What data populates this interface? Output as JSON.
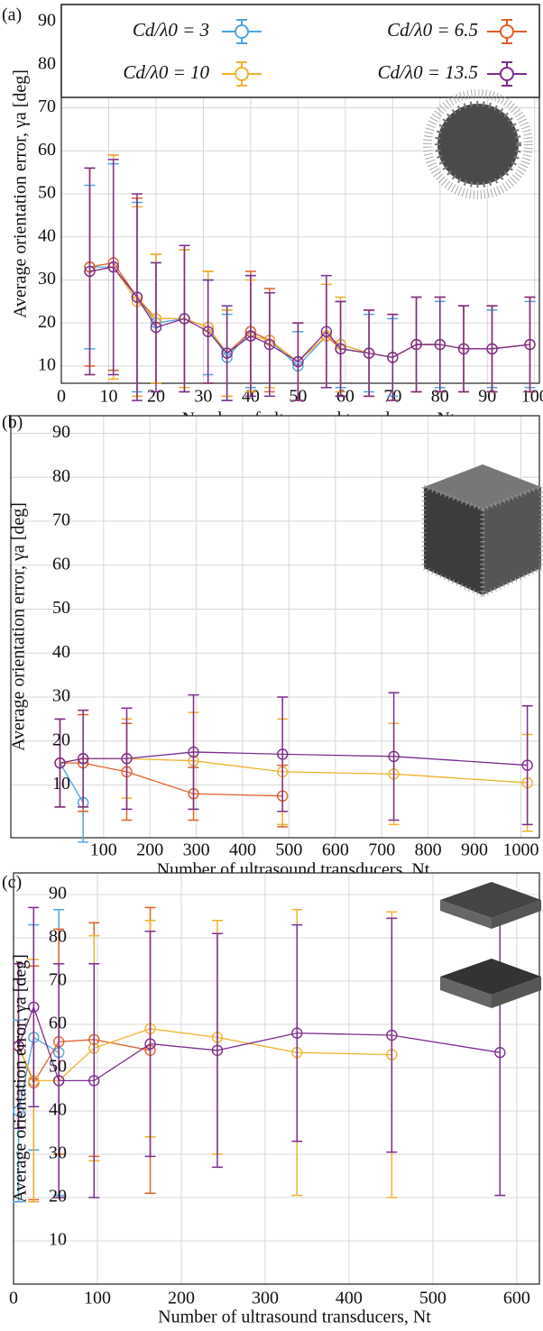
{
  "chart_data": [
    {
      "type": "errorbar-line",
      "panel_label": "(a)",
      "x_label": "Number of ultrasound transducers, Nt",
      "y_label": "Average orientation error, γa [deg]",
      "xlim": [
        0,
        101
      ],
      "xticks": [
        0,
        10,
        20,
        30,
        40,
        50,
        60,
        70,
        80,
        90,
        100
      ],
      "ylim": [
        6,
        94
      ],
      "yticks": [
        10,
        20,
        30,
        40,
        50,
        60,
        70,
        80,
        90
      ],
      "grid": true,
      "legend": "top",
      "series": [
        {
          "name": "Cd/λ0 = 3",
          "color": "#4ea5dc",
          "x": [
            6,
            11,
            16,
            20,
            26,
            31,
            35,
            40,
            44,
            50,
            56,
            59,
            65,
            70,
            75,
            80,
            85,
            91,
            99
          ],
          "values": [
            33,
            33,
            26,
            20,
            21,
            19,
            12,
            18,
            16,
            10,
            17,
            15,
            13,
            12,
            15,
            15,
            14,
            14,
            15
          ],
          "errors": [
            19,
            24,
            22,
            14,
            16,
            11,
            10,
            13,
            11,
            8,
            12,
            10,
            9,
            9,
            11,
            10,
            10,
            9,
            10
          ]
        },
        {
          "name": "Cd/λ0 = 6.5",
          "color": "#e0602a",
          "x": [
            6,
            11,
            16,
            20,
            26,
            31,
            35,
            40,
            44,
            50,
            56,
            59,
            65,
            70,
            75,
            80,
            85,
            91,
            99
          ],
          "values": [
            33,
            34,
            26,
            21,
            21,
            19,
            13,
            18,
            16,
            11,
            17,
            14,
            13,
            12,
            15,
            15,
            14,
            14,
            15
          ],
          "errors": [
            23,
            25,
            23,
            15,
            17,
            13,
            10,
            14,
            12,
            9,
            12,
            11,
            10,
            10,
            11,
            11,
            10,
            10,
            11
          ]
        },
        {
          "name": "Cd/λ0 = 10",
          "color": "#efb22f",
          "x": [
            6,
            11,
            16,
            20,
            26,
            31,
            35,
            40,
            44,
            50,
            56,
            59,
            65,
            70,
            75,
            80,
            85,
            91,
            99
          ],
          "values": [
            32,
            33,
            25,
            21,
            21,
            19,
            13,
            17,
            16,
            11,
            17,
            15,
            13,
            12,
            15,
            15,
            14,
            14,
            15
          ],
          "errors": [
            24,
            26,
            22,
            15,
            16,
            13,
            10,
            13,
            11,
            9,
            12,
            11,
            10,
            10,
            11,
            11,
            10,
            10,
            11
          ]
        },
        {
          "name": "Cd/λ0 = 13.5",
          "color": "#7b2d8e",
          "x": [
            6,
            11,
            16,
            20,
            26,
            31,
            35,
            40,
            44,
            50,
            56,
            59,
            65,
            70,
            75,
            80,
            85,
            91,
            99
          ],
          "values": [
            32,
            33,
            26,
            19,
            21,
            18,
            13,
            17,
            15,
            11,
            18,
            14,
            13,
            12,
            15,
            15,
            14,
            14,
            15
          ],
          "errors": [
            24,
            25,
            24,
            15,
            17,
            12,
            11,
            14,
            12,
            9,
            13,
            11,
            10,
            10,
            11,
            11,
            10,
            10,
            11
          ]
        }
      ]
    },
    {
      "type": "errorbar-line",
      "panel_label": "(b)",
      "x_label": "Number of ultrasound transducers, Nt",
      "y_label": "Average orientation error, γa [deg]",
      "xlim": [
        -100,
        1040
      ],
      "xticks": [
        100,
        200,
        300,
        400,
        500,
        600,
        700,
        800,
        900,
        1000
      ],
      "ylim": [
        -2,
        94
      ],
      "yticks": [
        10,
        20,
        30,
        40,
        50,
        60,
        70,
        80,
        90
      ],
      "grid": true,
      "series": [
        {
          "color": "#4ea5dc",
          "x": [
            6,
            56
          ],
          "values": [
            15,
            6
          ],
          "errors": [
            10,
            9
          ]
        },
        {
          "color": "#e0602a",
          "x": [
            6,
            56,
            150,
            294,
            486
          ],
          "values": [
            15,
            15,
            13,
            8,
            7.5
          ],
          "errors": [
            10,
            11,
            11,
            6,
            7
          ]
        },
        {
          "color": "#efb22f",
          "x": [
            6,
            56,
            150,
            294,
            486,
            726,
            1014
          ],
          "values": [
            15,
            16,
            16,
            15.5,
            13,
            12.5,
            10.5
          ],
          "errors": [
            10,
            11,
            9,
            11,
            12,
            11.5,
            11
          ]
        },
        {
          "color": "#7b2d8e",
          "x": [
            6,
            56,
            150,
            294,
            486,
            726,
            1014
          ],
          "values": [
            15,
            16,
            16,
            17.5,
            17,
            16.5,
            14.5
          ],
          "errors": [
            10,
            11,
            11.5,
            13,
            13,
            14.5,
            13.5
          ]
        }
      ]
    },
    {
      "type": "errorbar-line",
      "panel_label": "(c)",
      "x_label": "Number of ultrasound transducers, Nt",
      "y_label": "Average orientation error, γa [deg]",
      "xlim": [
        0,
        627
      ],
      "xticks": [
        0,
        100,
        200,
        300,
        400,
        500,
        600
      ],
      "ylim": [
        0,
        95
      ],
      "yticks": [
        10,
        20,
        30,
        40,
        50,
        60,
        70,
        80,
        90
      ],
      "grid": true,
      "series": [
        {
          "color": "#4ea5dc",
          "x": [
            6,
            24,
            54
          ],
          "values": [
            40,
            57,
            53.5
          ],
          "errors": [
            21,
            26,
            33
          ]
        },
        {
          "color": "#e0602a",
          "x": [
            6,
            24,
            54,
            96,
            163
          ],
          "values": [
            55,
            46.5,
            56,
            56.5,
            54
          ],
          "errors": [
            19,
            27,
            26,
            27,
            33
          ]
        },
        {
          "color": "#efb22f",
          "x": [
            6,
            24,
            54,
            96,
            163,
            243,
            338,
            451
          ],
          "values": [
            55,
            47,
            47,
            54.5,
            59,
            57,
            53.5,
            53
          ],
          "errors": [
            19,
            28,
            27,
            26,
            25,
            27,
            33,
            33
          ]
        },
        {
          "color": "#7b2d8e",
          "x": [
            6,
            24,
            54,
            96,
            163,
            243,
            338,
            451,
            580
          ],
          "values": [
            55,
            64,
            47,
            47,
            55.5,
            54,
            58,
            57.5,
            53.5
          ],
          "errors": [
            19,
            23,
            27,
            27,
            26,
            27,
            25,
            27,
            33
          ]
        }
      ]
    }
  ]
}
